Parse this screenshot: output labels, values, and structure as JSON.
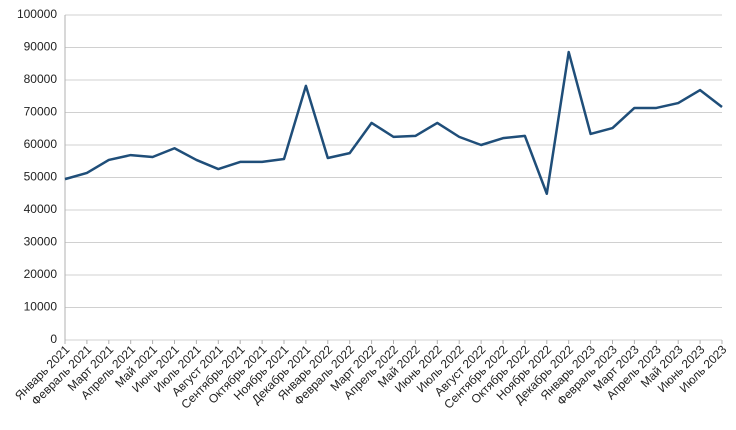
{
  "chart_data": {
    "type": "line",
    "categories": [
      "Январь 2021",
      "Февраль 2021",
      "Март 2021",
      "Апрель 2021",
      "Май 2021",
      "Июнь 2021",
      "Июль 2021",
      "Август 2021",
      "Сентябрь 2021",
      "Октябрь 2021",
      "Ноябрь 2021",
      "Декабрь 2021",
      "Январь 2022",
      "Февраль 2022",
      "Март 2022",
      "Апрель 2022",
      "Май 2022",
      "Июнь 2022",
      "Июль 2022",
      "Август 2022",
      "Сентябрь 2022",
      "Октябрь 2022",
      "Ноябрь 2022",
      "Декабрь 2022",
      "Январь 2023",
      "Февраль 2023",
      "Март 2023",
      "Апрель 2023",
      "Май 2023",
      "Июнь 2023",
      "Июль 2023"
    ],
    "series": [
      {
        "color": "#1f4e79",
        "values": [
          49500,
          51400,
          55400,
          56900,
          56300,
          59000,
          55400,
          52600,
          54800,
          54800,
          55700,
          78200,
          56000,
          57500,
          66800,
          62500,
          62800,
          66800,
          62500,
          60000,
          62100,
          62800,
          45000,
          88600,
          63400,
          65200,
          71400,
          71400,
          72900,
          76900,
          71700
        ]
      }
    ],
    "ylim": [
      0,
      100000
    ],
    "yticks": [
      0,
      10000,
      20000,
      30000,
      40000,
      50000,
      60000,
      70000,
      80000,
      90000,
      100000
    ],
    "grid": true
  }
}
